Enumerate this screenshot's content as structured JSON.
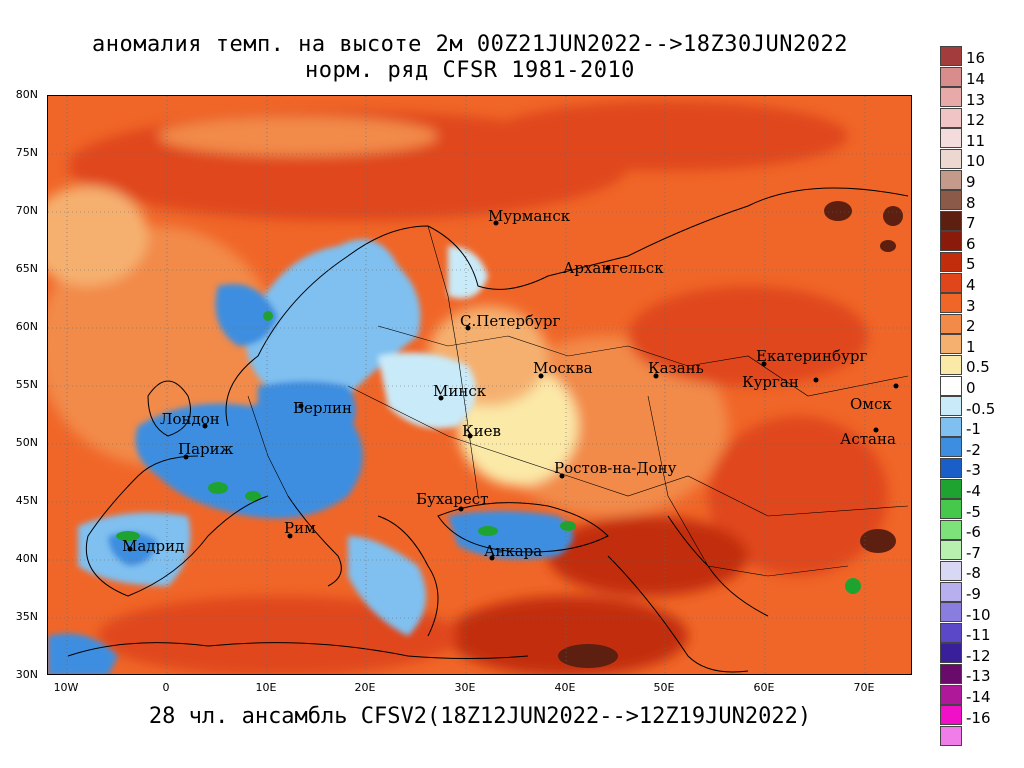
{
  "title": {
    "line1": "аномалия темп. на высоте 2м 00Z21JUN2022-->18Z30JUN2022",
    "line2": "норм. ряд CFSR 1981-2010"
  },
  "footer": "28 чл. ансамбль CFSV2(18Z12JUN2022-->12Z19JUN2022)",
  "map": {
    "lat_labels": [
      "80N",
      "75N",
      "70N",
      "65N",
      "60N",
      "55N",
      "50N",
      "45N",
      "40N",
      "35N",
      "30N"
    ],
    "lon_labels": [
      "10W",
      "0",
      "10E",
      "20E",
      "30E",
      "40E",
      "50E",
      "60E",
      "70E"
    ],
    "cities": [
      {
        "name": "Мурманск"
      },
      {
        "name": "Архангельск"
      },
      {
        "name": "С.Петербург"
      },
      {
        "name": "Москва"
      },
      {
        "name": "Казань"
      },
      {
        "name": "Екатеринбург"
      },
      {
        "name": "Курган"
      },
      {
        "name": "Омск"
      },
      {
        "name": "Астана"
      },
      {
        "name": "Минск"
      },
      {
        "name": "Берлин"
      },
      {
        "name": "Лондон"
      },
      {
        "name": "Париж"
      },
      {
        "name": "Киев"
      },
      {
        "name": "Ростов-на-Дону"
      },
      {
        "name": "Бухарест"
      },
      {
        "name": "Рим"
      },
      {
        "name": "Мадрид"
      },
      {
        "name": "Анкара"
      }
    ]
  },
  "colorbar": {
    "levels": [
      "16",
      "14",
      "13",
      "12",
      "11",
      "10",
      "9",
      "8",
      "7",
      "6",
      "5",
      "4",
      "3",
      "2",
      "1",
      "0.5",
      "0",
      "-0.5",
      "-1",
      "-2",
      "-3",
      "-4",
      "-5",
      "-6",
      "-7",
      "-8",
      "-9",
      "-10",
      "-11",
      "-12",
      "-13",
      "-14",
      "-16"
    ],
    "colors": [
      "#a33c3c",
      "#d98c8c",
      "#e8a9a9",
      "#f0c4c4",
      "#f5dcdc",
      "#ecd8d0",
      "#c49a8a",
      "#8c5a48",
      "#5c1f10",
      "#8a1b0a",
      "#c22e0c",
      "#e0461a",
      "#f06628",
      "#f28a48",
      "#f5b070",
      "#fbe9a8",
      "#ffffff",
      "#c9eaf8",
      "#7fc0f0",
      "#3d8ee0",
      "#1a5fc8",
      "#1fa330",
      "#46c84a",
      "#7ee27a",
      "#b8f0b0",
      "#d8d8f5",
      "#b8b0ee",
      "#8a7de0",
      "#5a48c8",
      "#3a1f9a",
      "#6a0a6a",
      "#b0189a",
      "#f010c8",
      "#f07ee8"
    ]
  }
}
